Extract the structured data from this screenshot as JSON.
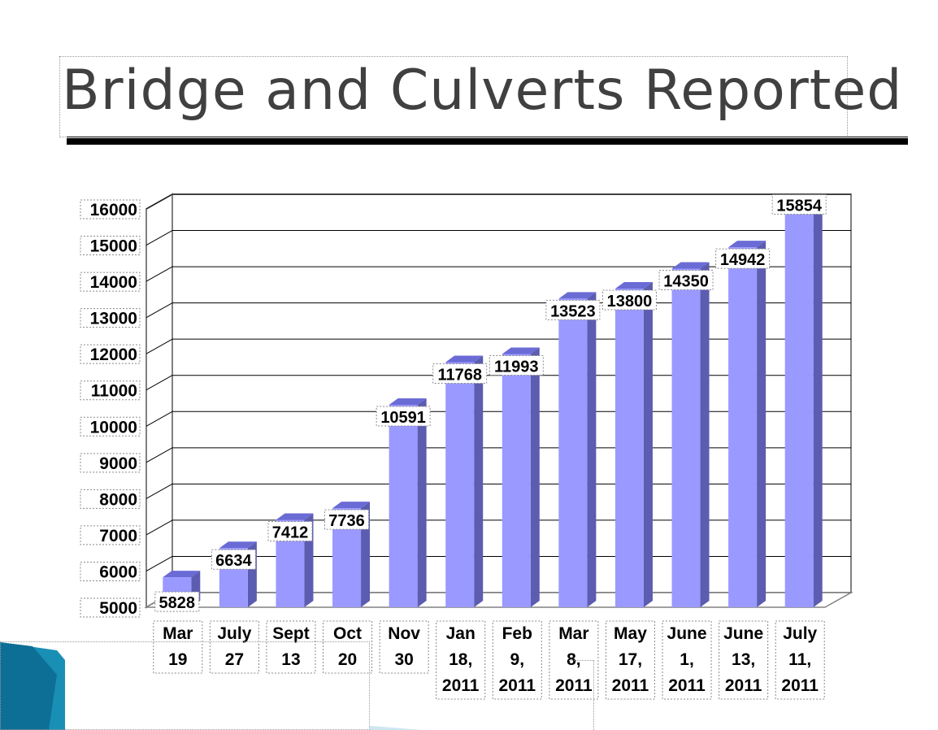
{
  "slide": {
    "title": "Bridge and Culverts Reported"
  },
  "colors": {
    "bar_front": "#9999ff",
    "bar_top": "#6b6bd6",
    "bar_side": "#5c5cb0",
    "title_text": "#404040",
    "accent_teal": "#1a8fb5"
  },
  "chart_data": {
    "type": "bar",
    "title": "",
    "xlabel": "",
    "ylabel": "",
    "ylim": [
      5000,
      16000
    ],
    "yticks": [
      "16000",
      "15000",
      "14000",
      "13000",
      "12000",
      "11000",
      "10000",
      "9000",
      "8000",
      "7000",
      "6000",
      "5000"
    ],
    "grid": true,
    "legend": "none",
    "categories": [
      [
        "Mar",
        "19"
      ],
      [
        "July",
        "27"
      ],
      [
        "Sept",
        "13"
      ],
      [
        "Oct",
        "20"
      ],
      [
        "Nov",
        "30"
      ],
      [
        "Jan",
        "18,",
        "2011"
      ],
      [
        "Feb",
        "9,",
        "2011"
      ],
      [
        "Mar",
        "8,",
        "2011"
      ],
      [
        "May",
        "17,",
        "2011"
      ],
      [
        "June",
        "1,",
        "2011"
      ],
      [
        "June",
        "13,",
        "2011"
      ],
      [
        "July",
        "11,",
        "2011"
      ]
    ],
    "values": [
      5828,
      6634,
      7412,
      7736,
      10591,
      11768,
      11993,
      13523,
      13800,
      14350,
      14942,
      15854
    ],
    "data_labels": [
      "5828",
      "6634",
      "7412",
      "7736",
      "10591",
      "11768",
      "11993",
      "13523",
      "13800",
      "14350",
      "14942",
      "15854"
    ]
  }
}
